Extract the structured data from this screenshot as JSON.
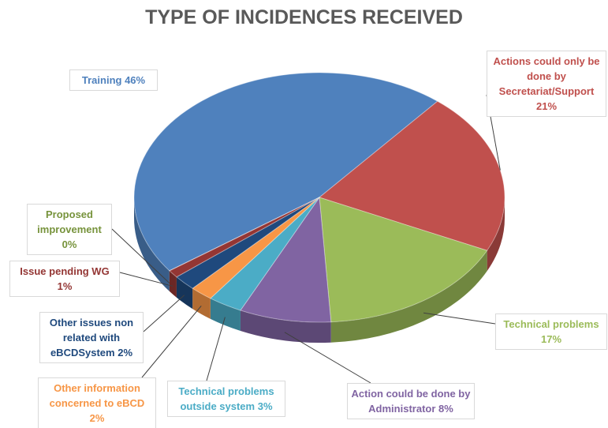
{
  "chart_data": {
    "type": "pie3d",
    "title": "TYPE OF INCIDENCES RECEIVED",
    "categories": [
      "Training",
      "Actions could only be done by Secretariat/Support",
      "Technical problems",
      "Action could be done by Administrator",
      "Technical problems outside system",
      "Other information concerned to eBCD",
      "Other issues non related with eBCDSystem",
      "Issue pending WG",
      "Proposed improvement"
    ],
    "values": [
      46,
      21,
      17,
      8,
      3,
      2,
      2,
      1,
      0
    ],
    "value_labels": [
      "46%",
      "21%",
      "17%",
      "8%",
      "3%",
      "2%",
      "2%",
      "1%",
      "0%"
    ],
    "colors": [
      "#4f81bd",
      "#c0504d",
      "#9bbb59",
      "#8064a2",
      "#4bacc6",
      "#f79646",
      "#1f497d",
      "#943634",
      "#77933c"
    ]
  }
}
